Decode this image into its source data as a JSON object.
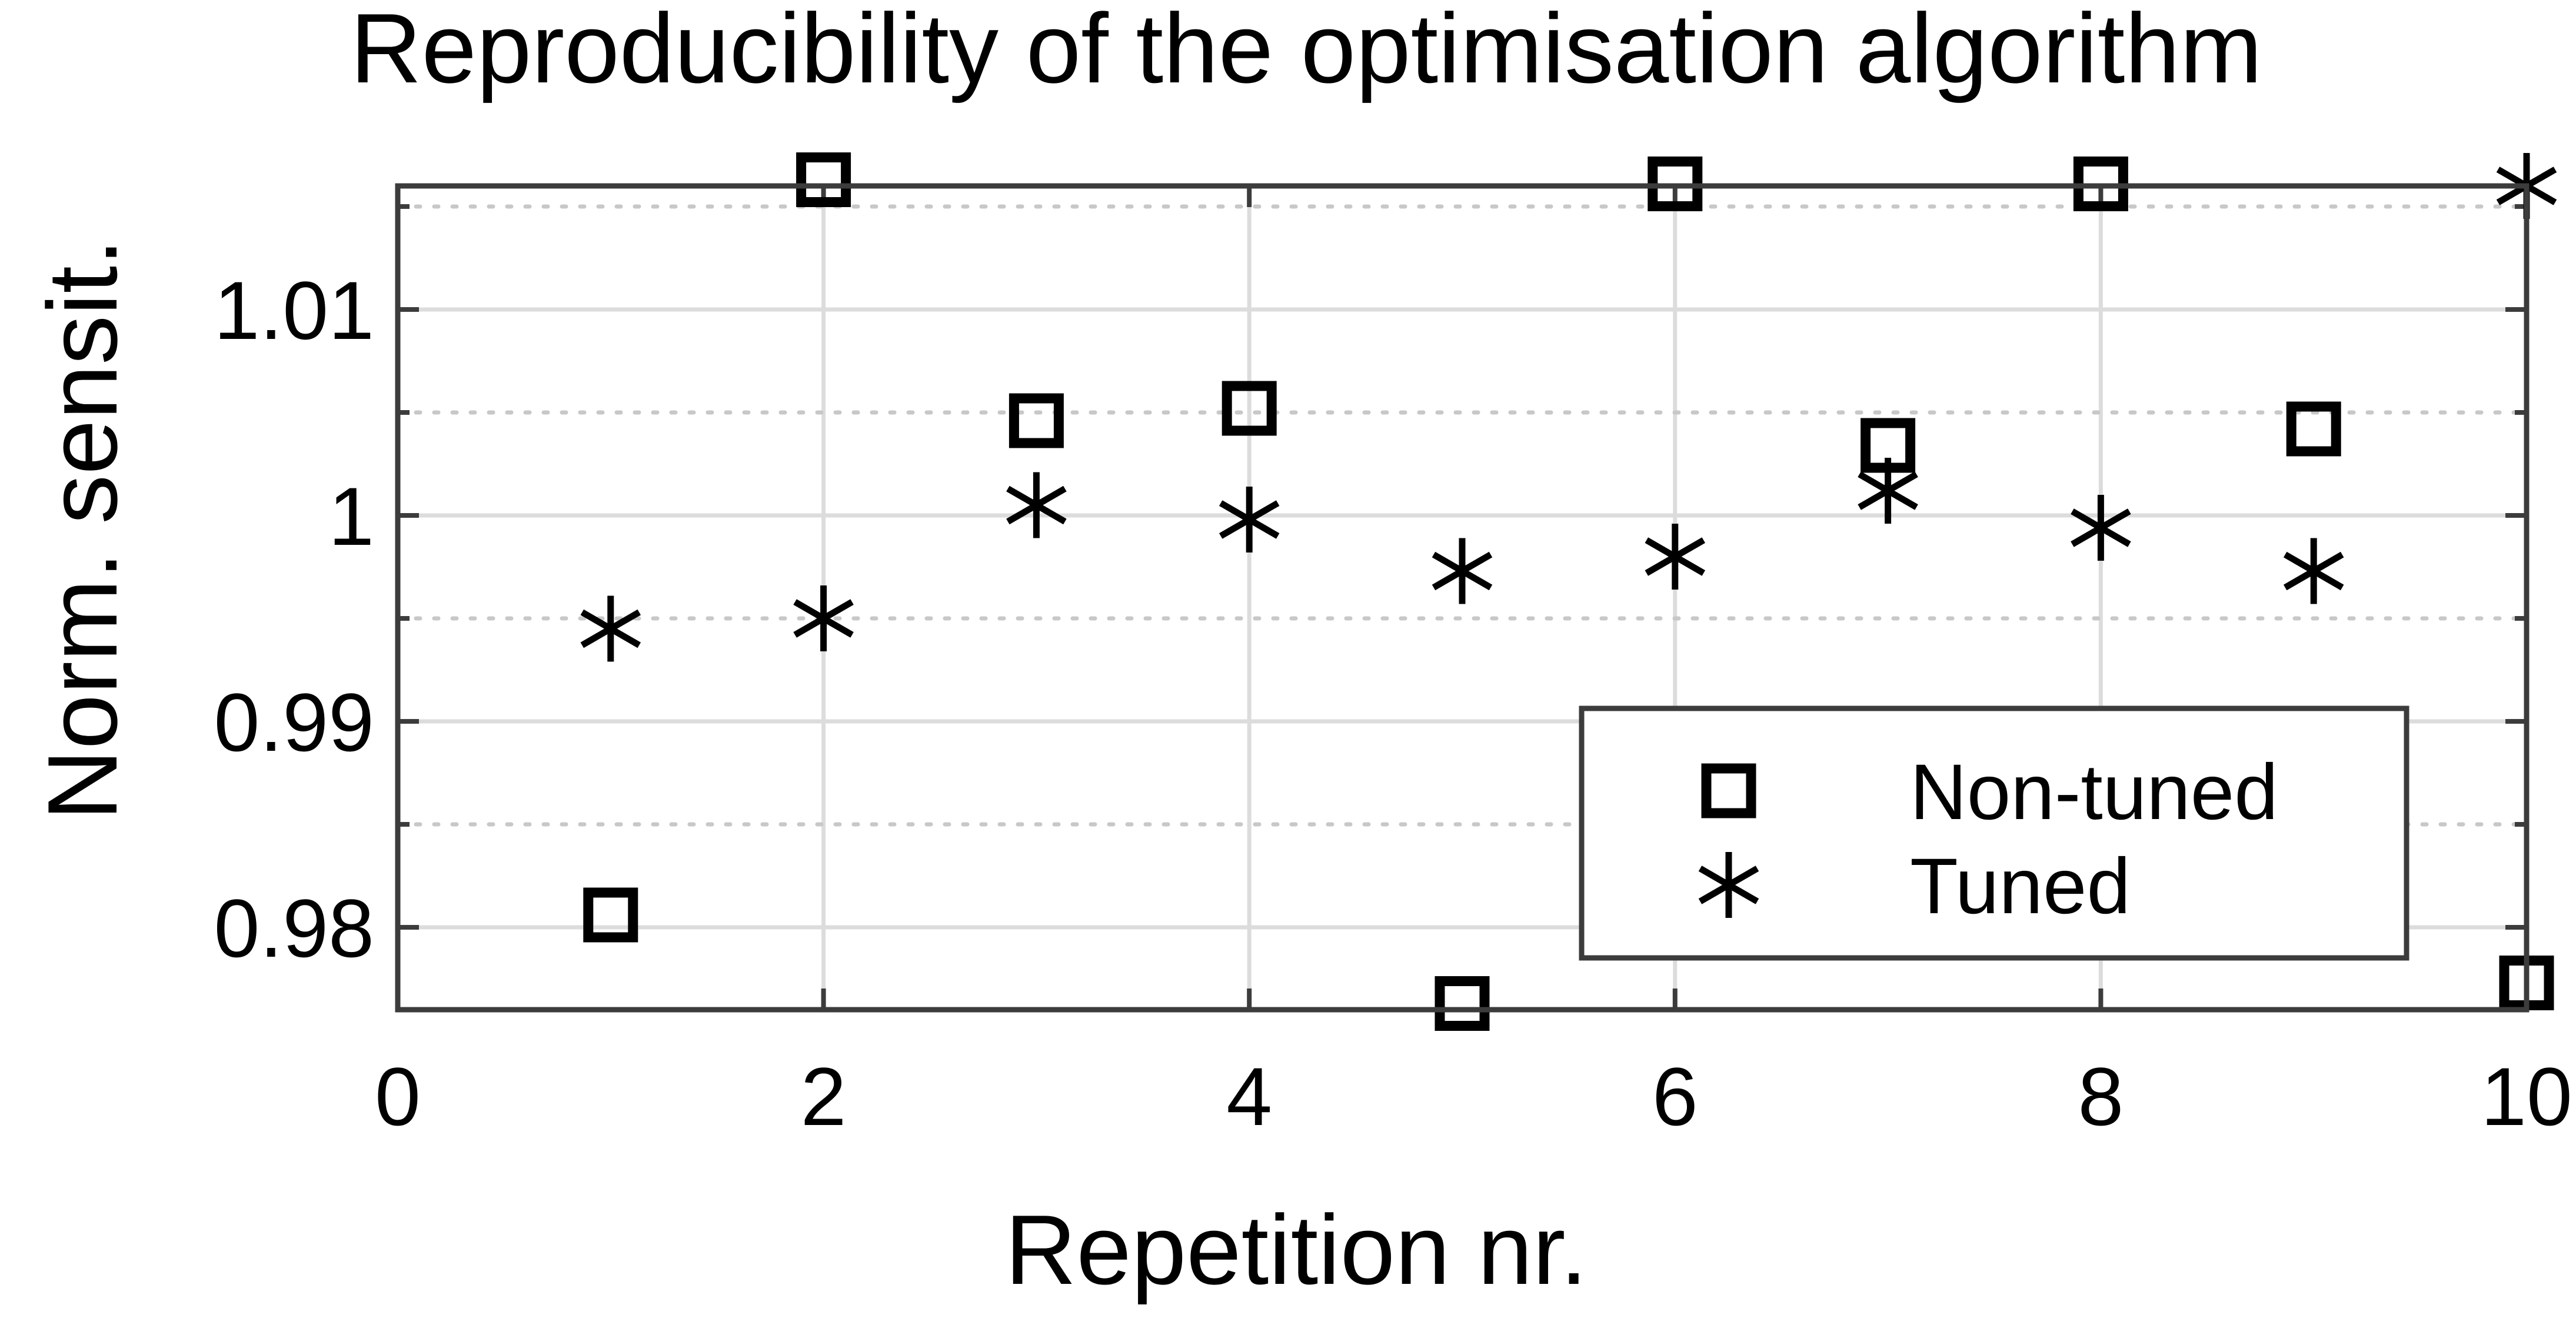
{
  "chart_data": {
    "type": "scatter",
    "title": "Reproducibility of the optimisation algorithm",
    "xlabel": "Repetition nr.",
    "ylabel": "Norm. sensit.",
    "xlim": [
      0,
      10
    ],
    "ylim": [
      0.976,
      1.016
    ],
    "x_ticks": [
      0,
      2,
      4,
      6,
      8,
      10
    ],
    "x_tick_labels": [
      "0",
      "2",
      "4",
      "6",
      "8",
      "10"
    ],
    "y_ticks": [
      0.98,
      0.99,
      1.0,
      1.01
    ],
    "y_tick_labels": [
      "0.98",
      "0.99",
      "1",
      "1.01"
    ],
    "y_minor_ticks": [
      0.985,
      0.995,
      1.005,
      1.015
    ],
    "grid": true,
    "legend_position": "bottom-right",
    "series": [
      {
        "name": "Non-tuned",
        "marker": "square",
        "color": "#000000",
        "x": [
          1,
          2,
          3,
          4,
          5,
          6,
          7,
          8,
          9,
          10
        ],
        "y": [
          0.9806,
          1.0163,
          1.0046,
          1.0052,
          0.9763,
          1.0161,
          1.0034,
          1.0161,
          1.0042,
          0.9773
        ]
      },
      {
        "name": "Tuned",
        "marker": "asterisk",
        "color": "#000000",
        "x": [
          1,
          2,
          3,
          4,
          5,
          6,
          7,
          8,
          9,
          10
        ],
        "y": [
          0.9945,
          0.995,
          1.0005,
          0.9998,
          0.9973,
          0.998,
          1.0012,
          0.9994,
          0.9973,
          1.016
        ]
      }
    ]
  }
}
